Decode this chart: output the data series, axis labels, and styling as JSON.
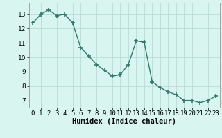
{
  "x": [
    0,
    1,
    2,
    3,
    4,
    5,
    6,
    7,
    8,
    9,
    10,
    11,
    12,
    13,
    14,
    15,
    16,
    17,
    18,
    19,
    20,
    21,
    22,
    23
  ],
  "y": [
    12.4,
    13.0,
    13.3,
    12.9,
    13.0,
    12.4,
    10.7,
    10.1,
    9.5,
    9.1,
    8.7,
    8.8,
    9.5,
    11.15,
    11.05,
    8.3,
    7.9,
    7.6,
    7.4,
    7.0,
    7.0,
    6.85,
    7.0,
    7.3
  ],
  "xlabel": "Humidex (Indice chaleur)",
  "xlim": [
    -0.5,
    23.5
  ],
  "ylim": [
    6.5,
    13.8
  ],
  "yticks": [
    7,
    8,
    9,
    10,
    11,
    12,
    13
  ],
  "xticks": [
    0,
    1,
    2,
    3,
    4,
    5,
    6,
    7,
    8,
    9,
    10,
    11,
    12,
    13,
    14,
    15,
    16,
    17,
    18,
    19,
    20,
    21,
    22,
    23
  ],
  "line_color": "#2D7A6B",
  "marker": "+",
  "marker_size": 4,
  "marker_lw": 1.2,
  "line_width": 1.0,
  "bg_color": "#D8F5EF",
  "grid_color": "#B8DDD6",
  "xlabel_fontsize": 7.5,
  "tick_fontsize": 6.5
}
